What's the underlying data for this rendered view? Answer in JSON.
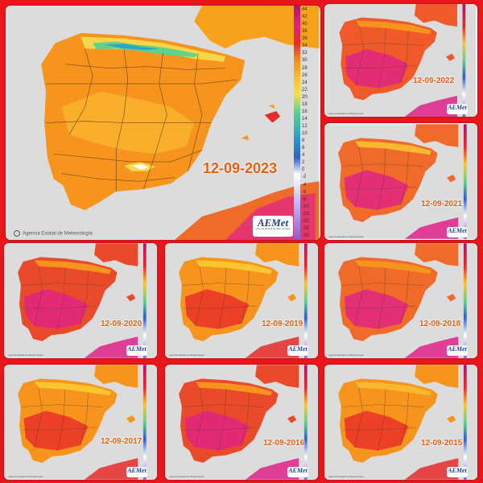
{
  "colors": {
    "frame": "#e8171c",
    "sea": "#dcdcdc",
    "land_base": "#f7941d",
    "hot": "#e82a2a",
    "very_hot": "#e0218a",
    "mild": "#f9c62f",
    "cool": "#5fd38a",
    "cold": "#2aa6c8",
    "date_text": "#e65f12"
  },
  "main": {
    "date": "12-09-2023",
    "footer": "Agencia Estatal de Meteorología",
    "logo": "AEMet",
    "logo_sub": "Agencia Estatal de Meteorología",
    "scale_ticks": [
      "44",
      "42",
      "40",
      "38",
      "36",
      "34",
      "32",
      "30",
      "28",
      "26",
      "24",
      "22",
      "20",
      "18",
      "16",
      "14",
      "12",
      "10",
      "8",
      "6",
      "4",
      "2",
      "0",
      "-2",
      "-4",
      "-6",
      "-8",
      "-10",
      "-15",
      "-20",
      "-25",
      "-30"
    ]
  },
  "panels": [
    {
      "date": "12-09-2022",
      "logo": "AEMet",
      "footer": "Agencia Estatal de Meteorología"
    },
    {
      "date": "12-09-2021",
      "logo": "AEMet",
      "footer": "Agencia Estatal de Meteorología"
    },
    {
      "date": "12-09-2020",
      "logo": "AEMet",
      "footer": "Agencia Estatal de Meteorología"
    },
    {
      "date": "12-09-2019",
      "logo": "AEMet",
      "footer": "Agencia Estatal de Meteorología"
    },
    {
      "date": "12-09-2018",
      "logo": "AEMet",
      "footer": "Agencia Estatal de Meteorología"
    },
    {
      "date": "12-09-2017",
      "logo": "AEMet",
      "footer": "Agencia Estatal de Meteorología"
    },
    {
      "date": "12-09-2016",
      "logo": "AEMet",
      "footer": "Agencia Estatal de Meteorología"
    },
    {
      "date": "12-09-2015",
      "logo": "AEMet",
      "footer": "Agencia Estatal de Meteorología"
    }
  ]
}
